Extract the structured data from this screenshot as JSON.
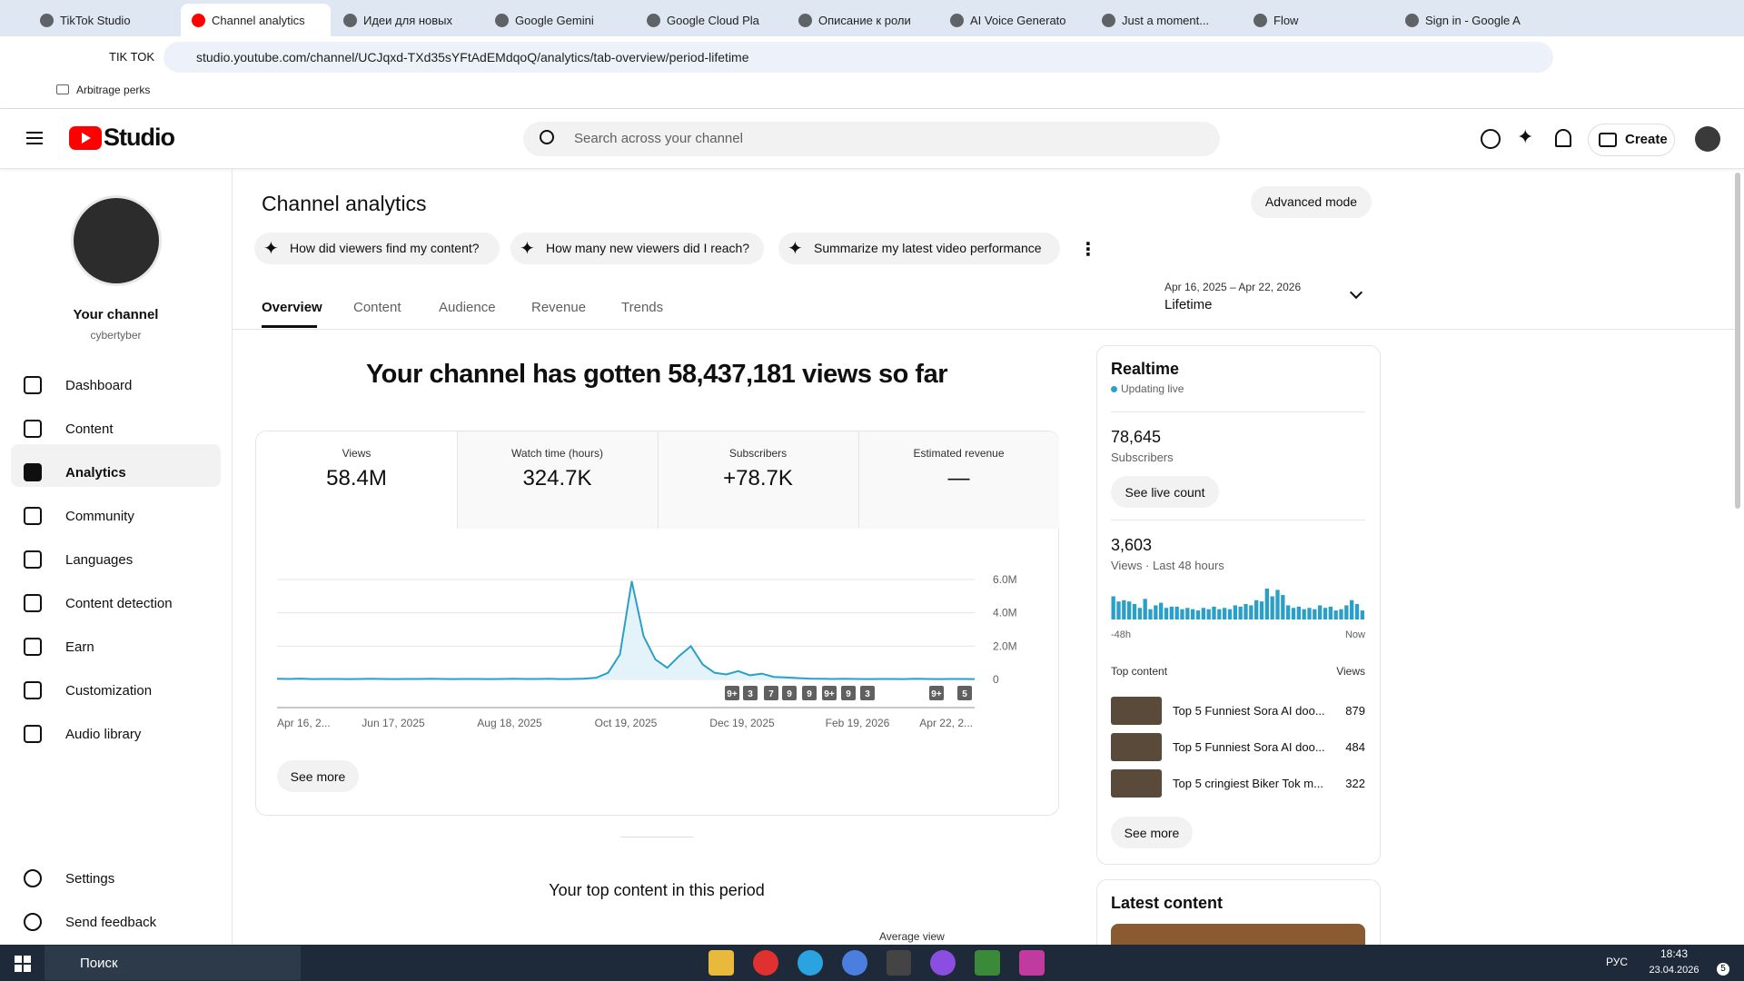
{
  "browser": {
    "tabs": [
      "TikTok Studio",
      "Channel analytics",
      "Идеи для новых",
      "Google Gemini",
      "Google Cloud Pla",
      "Описание к роли",
      "AI Voice Generato",
      "Just a moment...",
      "Flow",
      "Sign in - Google A"
    ],
    "shortcut": "TIK TOK",
    "url": "studio.youtube.com/channel/UCJqxd-TXd35sYFtAdEMdqoQ/analytics/tab-overview/period-lifetime",
    "bookmark": "Arbitrage perks"
  },
  "studio": {
    "logo_text": "Studio",
    "search_placeholder": "Search across your channel",
    "create": "Create"
  },
  "sidebar": {
    "channel_title": "Your channel",
    "channel_handle": "cybertyber",
    "nav": [
      "Dashboard",
      "Content",
      "Analytics",
      "Community",
      "Languages",
      "Content detection",
      "Earn",
      "Customization",
      "Audio library"
    ],
    "bottom": [
      "Settings",
      "Send feedback"
    ]
  },
  "page": {
    "title": "Channel analytics",
    "advanced": "Advanced mode",
    "chips": [
      "How did viewers find my content?",
      "How many new viewers did I reach?",
      "Summarize my latest video performance"
    ],
    "tabs": [
      "Overview",
      "Content",
      "Audience",
      "Revenue",
      "Trends"
    ],
    "date_range": "Apr 16, 2025 – Apr 22, 2026",
    "period": "Lifetime",
    "headline": "Your channel has gotten 58,437,181 views so far",
    "metrics": [
      {
        "label": "Views",
        "value": "58.4M"
      },
      {
        "label": "Watch time (hours)",
        "value": "324.7K"
      },
      {
        "label": "Subscribers",
        "value": "+78.7K"
      },
      {
        "label": "Estimated revenue",
        "value": "—"
      }
    ],
    "see_more": "See more",
    "top_content_title": "Your top content in this period",
    "average_view": "Average view"
  },
  "chart_data": {
    "type": "line",
    "color": "#2aa0c8",
    "values": [
      40000,
      30000,
      50000,
      20000,
      30000,
      30000,
      20000,
      30000,
      40000,
      30000,
      20000,
      30000,
      30000,
      40000,
      30000,
      20000,
      30000,
      30000,
      20000,
      30000,
      40000,
      30000,
      30000,
      40000,
      20000,
      30000,
      50000,
      100000,
      400000,
      1500000,
      5900000,
      2600000,
      1200000,
      700000,
      1400000,
      2000000,
      900000,
      400000,
      300000,
      500000,
      250000,
      350000,
      150000,
      120000,
      80000,
      50000,
      40000,
      30000,
      40000,
      30000,
      20000,
      30000,
      30000,
      20000,
      40000,
      30000,
      20000,
      30000,
      30000,
      20000
    ],
    "x_labels": [
      "Apr 16, 2...",
      "Jun 17, 2025",
      "Aug 18, 2025",
      "Oct 19, 2025",
      "Dec 19, 2025",
      "Feb 19, 2026",
      "Apr 22, 2..."
    ],
    "ylim": [
      0,
      6000000
    ],
    "yticks": [
      0,
      {
        "value": 2000000,
        "label": "2.0M"
      },
      {
        "value": 4000000,
        "label": "4.0M"
      },
      {
        "value": 6000000,
        "label": "6.0M"
      }
    ],
    "grid": true,
    "annotations": [
      "9+",
      "3",
      "7",
      "9",
      "9",
      "9+",
      "9",
      "3",
      "9+",
      "5"
    ]
  },
  "realtime": {
    "title": "Realtime",
    "status": "Updating live",
    "subscribers": "78,645",
    "subscribers_label": "Subscribers",
    "live_count": "See live count",
    "views": "3,603",
    "views_label": "Views · Last 48 hours",
    "bars": [
      90,
      70,
      75,
      70,
      60,
      45,
      80,
      40,
      55,
      65,
      45,
      50,
      50,
      40,
      45,
      40,
      35,
      45,
      40,
      50,
      40,
      45,
      40,
      55,
      50,
      60,
      55,
      75,
      70,
      120,
      90,
      115,
      95,
      55,
      45,
      50,
      40,
      45,
      40,
      55,
      45,
      50,
      35,
      40,
      55,
      75,
      60,
      35
    ],
    "start": "-48h",
    "end": "Now",
    "top_content": "Top content",
    "views_col": "Views",
    "items": [
      {
        "title": "Top 5 Funniest Sora AI doo...",
        "views": 879
      },
      {
        "title": "Top 5 Funniest Sora AI doo...",
        "views": 484
      },
      {
        "title": "Top 5 cringiest Biker Tok m...",
        "views": 322
      }
    ],
    "see_more": "See more"
  },
  "latest": {
    "title": "Latest content"
  },
  "taskbar": {
    "search": "Поиск",
    "lang": "РУС",
    "time": "18:43",
    "date": "23.04.2026",
    "notifications": 5
  }
}
